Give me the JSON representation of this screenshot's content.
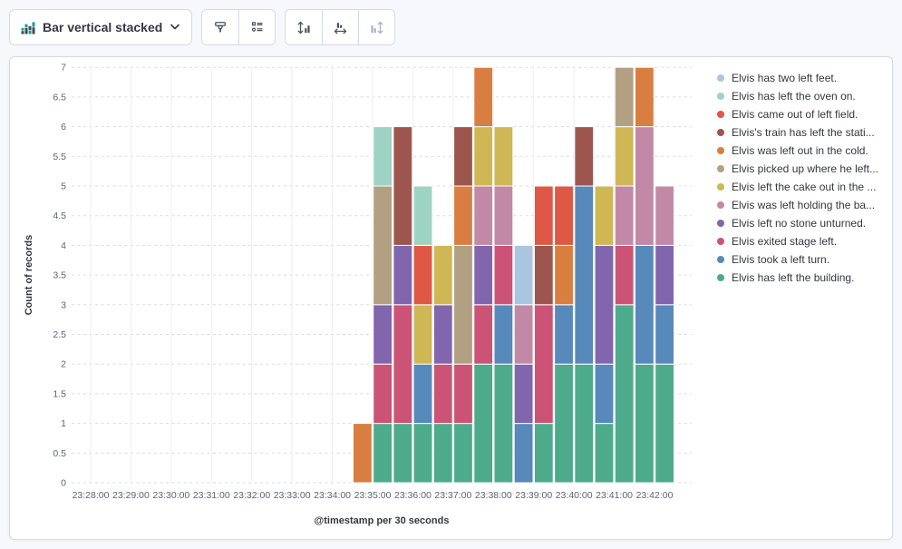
{
  "toolbar": {
    "chart_type_label": "Bar vertical stacked",
    "icons": [
      "bar-vertical-stacked-icon",
      "chevron-down-icon",
      "paint-roller-icon",
      "legend-settings-icon",
      "axis-left-icon",
      "axis-bottom-icon",
      "axis-right-icon"
    ]
  },
  "chart_data": {
    "type": "bar",
    "stacked": true,
    "title": "",
    "xlabel": "@timestamp per 30 seconds",
    "ylabel": "Count of records",
    "ylim": [
      0,
      7
    ],
    "grid": true,
    "legend_position": "right",
    "bucket_interval_seconds": 30,
    "x_ticks": [
      "23:28:00",
      "23:29:00",
      "23:30:00",
      "23:31:00",
      "23:32:00",
      "23:33:00",
      "23:34:00",
      "23:35:00",
      "23:36:00",
      "23:37:00",
      "23:38:00",
      "23:39:00",
      "23:40:00",
      "23:41:00",
      "23:42:00"
    ],
    "y_ticks": [
      "0",
      "0.5",
      "1",
      "1.5",
      "2",
      "2.5",
      "3",
      "3.5",
      "4",
      "4.5",
      "5",
      "5.5",
      "6",
      "6.5",
      "7"
    ],
    "categories": [
      "23:34:30",
      "23:35:00",
      "23:35:30",
      "23:36:00",
      "23:36:30",
      "23:37:00",
      "23:37:30",
      "23:38:00",
      "23:38:30",
      "23:39:00",
      "23:39:30",
      "23:40:00",
      "23:40:30",
      "23:41:00",
      "23:41:30",
      "23:42:00"
    ],
    "first_category_halfstep_offset": 13,
    "stack_order_note": "bars stack bottom-to-top in reverse of series order",
    "series": [
      {
        "name": "Elvis has two left feet.",
        "color": "#A9C5DF",
        "values": [
          0,
          0,
          0,
          0,
          0,
          0,
          0,
          0,
          1,
          0,
          0,
          0,
          0,
          0,
          0,
          0
        ]
      },
      {
        "name": "Elvis has left the oven on.",
        "color": "#9ED3C4",
        "values": [
          0,
          1,
          0,
          1,
          0,
          0,
          0,
          0,
          0,
          0,
          0,
          0,
          0,
          0,
          0,
          0
        ]
      },
      {
        "name": "Elvis came out of left field.",
        "color": "#DE5845",
        "values": [
          0,
          0,
          0,
          1,
          0,
          0,
          0,
          0,
          0,
          1,
          1,
          0,
          0,
          0,
          0,
          0
        ]
      },
      {
        "name": "Elvis's train has left the stati...",
        "color": "#9C564E",
        "values": [
          0,
          0,
          2,
          0,
          0,
          1,
          0,
          0,
          0,
          1,
          0,
          1,
          0,
          0,
          0,
          0
        ]
      },
      {
        "name": "Elvis was left out in the cold.",
        "color": "#D97E41",
        "values": [
          1,
          0,
          0,
          0,
          0,
          1,
          1,
          0,
          0,
          0,
          1,
          0,
          0,
          0,
          1,
          0
        ]
      },
      {
        "name": "Elvis picked up where he left...",
        "color": "#B2A082",
        "values": [
          0,
          2,
          0,
          0,
          0,
          2,
          0,
          0,
          0,
          0,
          0,
          0,
          0,
          1,
          0,
          0
        ]
      },
      {
        "name": "Elvis left the cake out in the ...",
        "color": "#CFB755",
        "values": [
          0,
          0,
          0,
          1,
          1,
          0,
          1,
          1,
          0,
          0,
          0,
          0,
          1,
          1,
          0,
          0
        ]
      },
      {
        "name": "Elvis was left holding the ba...",
        "color": "#C289A6",
        "values": [
          0,
          0,
          0,
          0,
          0,
          0,
          1,
          1,
          1,
          0,
          0,
          0,
          0,
          1,
          2,
          1
        ]
      },
      {
        "name": "Elvis left no stone unturned.",
        "color": "#8166AE",
        "values": [
          0,
          1,
          1,
          0,
          1,
          0,
          1,
          0,
          1,
          0,
          0,
          0,
          2,
          0,
          0,
          1
        ]
      },
      {
        "name": "Elvis exited stage left.",
        "color": "#CB5476",
        "values": [
          0,
          1,
          2,
          0,
          1,
          1,
          1,
          1,
          0,
          2,
          0,
          0,
          0,
          1,
          0,
          0
        ]
      },
      {
        "name": "Elvis took a left turn.",
        "color": "#5789BB",
        "values": [
          0,
          0,
          0,
          1,
          0,
          0,
          0,
          1,
          1,
          0,
          1,
          3,
          1,
          0,
          2,
          1
        ]
      },
      {
        "name": "Elvis has left the building.",
        "color": "#4DAB8C",
        "values": [
          0,
          1,
          1,
          1,
          1,
          1,
          2,
          2,
          0,
          1,
          2,
          2,
          1,
          3,
          2,
          2
        ]
      }
    ]
  }
}
